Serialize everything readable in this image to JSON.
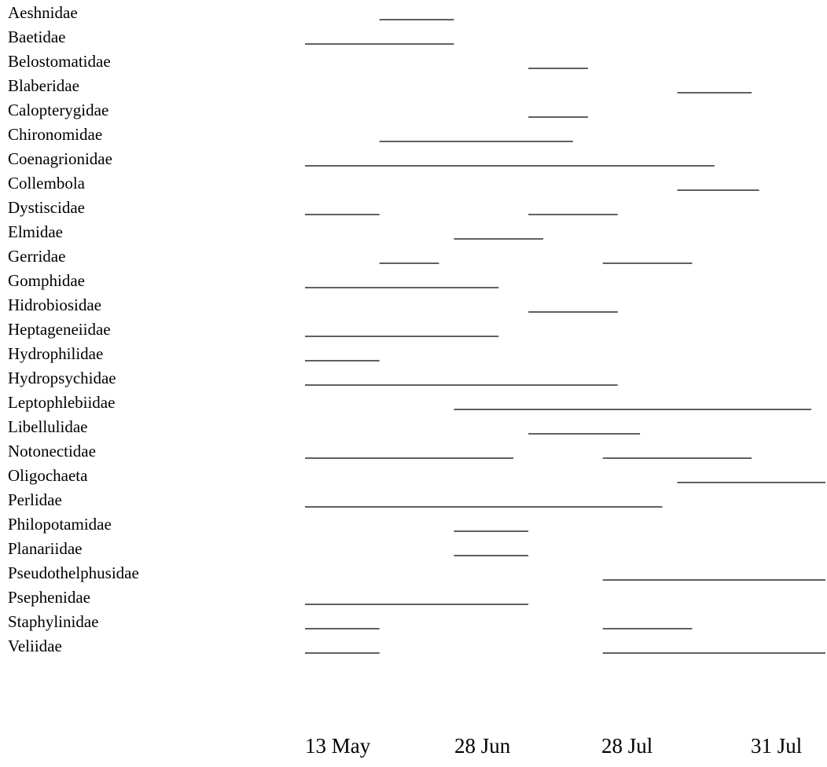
{
  "chart_data": {
    "type": "timeline",
    "title": "",
    "xlabel": "",
    "ylabel": "",
    "categories": [
      "13 May",
      "28 Jun",
      "28 Jul",
      "31 Jul"
    ],
    "legend": "none",
    "grid": false,
    "series": [
      {
        "label": "Aeshnidae",
        "segments": [
          [
            1.0,
            2.0
          ]
        ]
      },
      {
        "label": "Baetidae",
        "segments": [
          [
            0.0,
            2.0
          ]
        ]
      },
      {
        "label": "Belostomatidae",
        "segments": [
          [
            3.0,
            3.8
          ]
        ]
      },
      {
        "label": "Blaberidae",
        "segments": [
          [
            5.0,
            6.0
          ]
        ]
      },
      {
        "label": "Calopterygidae",
        "segments": [
          [
            3.0,
            3.8
          ]
        ]
      },
      {
        "label": "Chironomidae",
        "segments": [
          [
            1.0,
            3.6
          ]
        ]
      },
      {
        "label": "Coenagrionidae",
        "segments": [
          [
            0.0,
            5.5
          ]
        ]
      },
      {
        "label": "Collembola",
        "segments": [
          [
            5.0,
            6.1
          ]
        ]
      },
      {
        "label": "Dystiscidae",
        "segments": [
          [
            0.0,
            1.0
          ],
          [
            3.0,
            4.2
          ]
        ]
      },
      {
        "label": "Elmidae",
        "segments": [
          [
            2.0,
            3.2
          ]
        ]
      },
      {
        "label": "Gerridae",
        "segments": [
          [
            1.0,
            1.8
          ],
          [
            4.0,
            5.2
          ]
        ]
      },
      {
        "label": "Gomphidae",
        "segments": [
          [
            0.0,
            2.6
          ]
        ]
      },
      {
        "label": "Hidrobiosidae",
        "segments": [
          [
            3.0,
            4.2
          ]
        ]
      },
      {
        "label": "Heptageneiidae",
        "segments": [
          [
            0.0,
            2.6
          ]
        ]
      },
      {
        "label": "Hydrophilidae",
        "segments": [
          [
            0.0,
            1.0
          ]
        ]
      },
      {
        "label": "Hydropsychidae",
        "segments": [
          [
            0.0,
            4.2
          ]
        ]
      },
      {
        "label": "Leptophlebiidae",
        "segments": [
          [
            2.0,
            6.8
          ]
        ]
      },
      {
        "label": "Libellulidae",
        "segments": [
          [
            3.0,
            4.5
          ]
        ]
      },
      {
        "label": "Notonectidae",
        "segments": [
          [
            0.0,
            2.8
          ],
          [
            4.0,
            6.0
          ]
        ]
      },
      {
        "label": "Oligochaeta",
        "segments": [
          [
            5.0,
            7.0
          ]
        ]
      },
      {
        "label": "Perlidae",
        "segments": [
          [
            0.0,
            4.8
          ]
        ]
      },
      {
        "label": "Philopotamidae",
        "segments": [
          [
            2.0,
            3.0
          ]
        ]
      },
      {
        "label": "Planariidae",
        "segments": [
          [
            2.0,
            3.0
          ]
        ]
      },
      {
        "label": "Pseudothelphusidae",
        "segments": [
          [
            4.0,
            7.0
          ]
        ]
      },
      {
        "label": "Psephenidae",
        "segments": [
          [
            0.0,
            3.0
          ]
        ]
      },
      {
        "label": "Staphylinidae",
        "segments": [
          [
            0.0,
            1.0
          ],
          [
            4.0,
            5.2
          ]
        ]
      },
      {
        "label": "Veliidae",
        "segments": [
          [
            0.0,
            1.0
          ],
          [
            4.0,
            7.0
          ]
        ]
      }
    ]
  }
}
